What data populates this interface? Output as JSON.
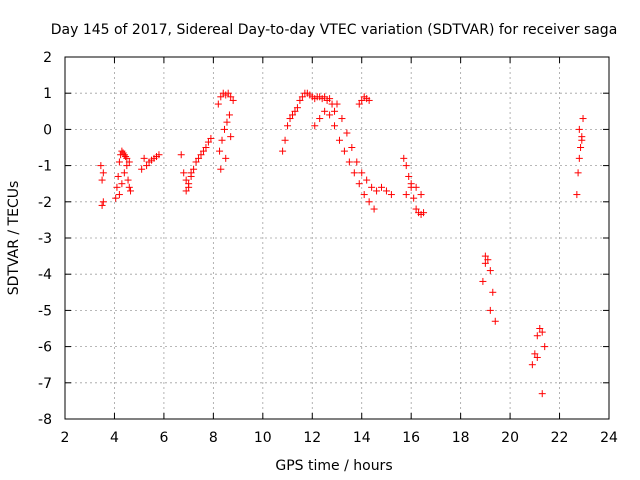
{
  "chart_data": {
    "type": "scatter",
    "title": "Day 145 of 2017, Sidereal Day-to-day VTEC variation (SDTVAR) for receiver saga",
    "xlabel": "GPS time / hours",
    "ylabel": "SDTVAR / TECUs",
    "xlim": [
      2,
      24
    ],
    "ylim": [
      -8,
      2
    ],
    "xticks": [
      "2",
      "4",
      "6",
      "8",
      "10",
      "12",
      "14",
      "16",
      "18",
      "20",
      "22",
      "24"
    ],
    "yticks": [
      "2",
      "1",
      "0",
      "-1",
      "-2",
      "-3",
      "-4",
      "-5",
      "-6",
      "-7",
      "-8"
    ],
    "grid": true,
    "marker": "+",
    "color": "#ff0000",
    "series": [
      {
        "name": "SDTVAR",
        "x": [
          3.45,
          3.5,
          3.55,
          3.5,
          3.55,
          4.05,
          4.1,
          4.15,
          4.2,
          4.25,
          4.3,
          4.35,
          4.4,
          4.45,
          4.5,
          4.55,
          4.6,
          4.65,
          4.2,
          4.3,
          4.4,
          4.5,
          4.6,
          5.1,
          5.2,
          5.3,
          5.4,
          5.5,
          5.6,
          5.7,
          5.8,
          6.7,
          6.8,
          6.9,
          7.0,
          7.1,
          7.2,
          7.3,
          7.4,
          7.5,
          7.6,
          7.7,
          7.8,
          7.9,
          6.9,
          7.0,
          7.1,
          8.2,
          8.3,
          8.4,
          8.5,
          8.6,
          8.7,
          8.8,
          8.25,
          8.35,
          8.45,
          8.55,
          8.65,
          8.3,
          8.5,
          8.7,
          10.8,
          10.9,
          11.0,
          11.1,
          11.2,
          11.3,
          11.4,
          11.5,
          11.6,
          11.7,
          11.8,
          11.9,
          12.0,
          12.1,
          12.2,
          12.3,
          12.4,
          12.5,
          12.6,
          12.7,
          12.8,
          12.9,
          12.1,
          12.3,
          12.5,
          12.7,
          12.9,
          13.1,
          13.3,
          13.5,
          13.7,
          13.9,
          14.1,
          14.3,
          14.5,
          13.0,
          13.2,
          13.4,
          13.6,
          13.8,
          14.0,
          14.2,
          14.4,
          14.6,
          14.8,
          15.0,
          15.2,
          13.9,
          14.0,
          14.1,
          14.2,
          14.3,
          15.7,
          15.8,
          15.9,
          16.0,
          16.1,
          16.2,
          16.3,
          16.4,
          16.5,
          15.8,
          16.0,
          16.2,
          16.4,
          18.9,
          19.0,
          19.1,
          19.2,
          19.3,
          19.4,
          19.0,
          19.2,
          20.9,
          21.0,
          21.1,
          21.2,
          21.3,
          21.4,
          21.1,
          21.3,
          22.7,
          22.75,
          22.8,
          22.85,
          22.9,
          22.95,
          22.8,
          22.9
        ],
        "y": [
          -1.0,
          -1.4,
          -2.0,
          -2.1,
          -1.2,
          -1.9,
          -1.6,
          -1.3,
          -0.9,
          -0.7,
          -0.6,
          -0.65,
          -0.7,
          -0.75,
          -0.8,
          -1.4,
          -1.6,
          -1.7,
          -1.8,
          -1.5,
          -1.2,
          -1.0,
          -0.9,
          -1.1,
          -0.8,
          -1.0,
          -0.9,
          -0.85,
          -0.8,
          -0.75,
          -0.7,
          -0.7,
          -1.2,
          -1.4,
          -1.6,
          -1.3,
          -1.1,
          -0.9,
          -0.8,
          -0.7,
          -0.6,
          -0.5,
          -0.35,
          -0.25,
          -1.7,
          -1.5,
          -1.2,
          0.7,
          0.9,
          1.0,
          0.95,
          1.0,
          0.9,
          0.8,
          -0.6,
          -0.3,
          0.0,
          0.2,
          0.4,
          -1.1,
          -0.8,
          -0.2,
          -0.6,
          -0.3,
          0.1,
          0.3,
          0.4,
          0.5,
          0.6,
          0.8,
          0.9,
          1.0,
          1.0,
          0.95,
          0.9,
          0.85,
          0.9,
          0.9,
          0.85,
          0.9,
          0.8,
          0.85,
          0.7,
          0.5,
          0.1,
          0.3,
          0.5,
          0.4,
          0.1,
          -0.3,
          -0.6,
          -0.9,
          -1.2,
          -1.5,
          -1.8,
          -2.0,
          -2.2,
          0.7,
          0.3,
          -0.1,
          -0.5,
          -0.9,
          -1.2,
          -1.4,
          -1.6,
          -1.7,
          -1.6,
          -1.7,
          -1.8,
          0.7,
          0.8,
          0.9,
          0.85,
          0.8,
          -0.8,
          -1.0,
          -1.3,
          -1.6,
          -1.9,
          -2.2,
          -2.3,
          -2.35,
          -2.3,
          -1.8,
          -1.5,
          -1.6,
          -1.8,
          -4.2,
          -3.7,
          -3.6,
          -3.9,
          -4.5,
          -5.3,
          -3.5,
          -5.0,
          -6.5,
          -6.2,
          -5.7,
          -5.5,
          -5.6,
          -6.0,
          -6.3,
          -7.3,
          -1.8,
          -1.2,
          -0.8,
          -0.5,
          -0.2,
          0.3,
          0.0,
          -0.3
        ]
      }
    ]
  }
}
